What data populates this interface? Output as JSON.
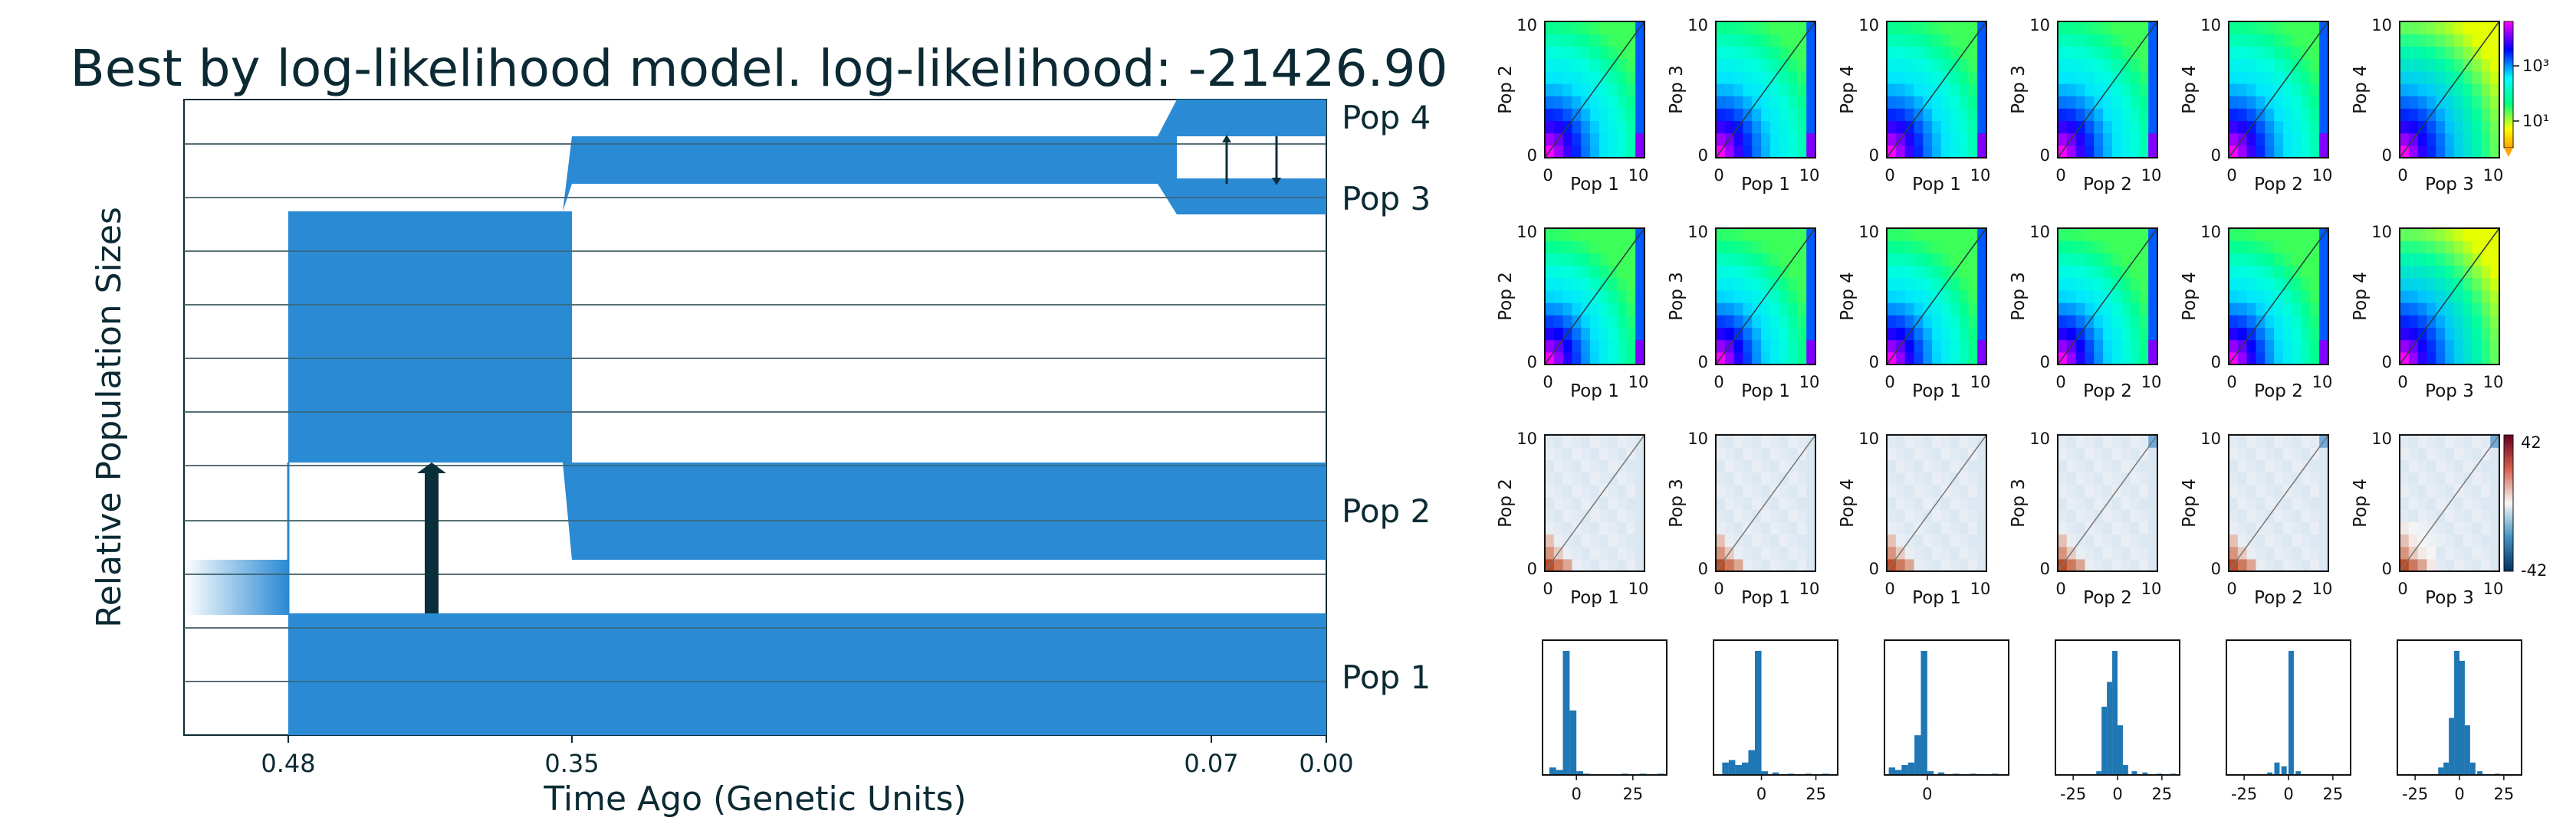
{
  "chart_data": {
    "type": "demographic-model-figure",
    "title": "Best by log-likelihood model. log-likelihood: -21426.90",
    "xlabel": "Time Ago (Genetic Units)",
    "ylabel": "Relative Population Sizes",
    "time_ticks": [
      {
        "value": 0.48,
        "label": "0.48"
      },
      {
        "value": 0.35,
        "label": "0.35"
      },
      {
        "value": 0.07,
        "label": "0.07"
      },
      {
        "value": 0.0,
        "label": "0.00"
      }
    ],
    "populations": [
      "Pop 1",
      "Pop 2",
      "Pop 3",
      "Pop 4"
    ],
    "model_color": "#2a8ad4",
    "arrow_color": "#0b2f3a",
    "sfs_tick_labels": {
      "zero": "0",
      "max": "10"
    },
    "sfs_pairs": [
      {
        "x": "Pop 1",
        "y": "Pop 2"
      },
      {
        "x": "Pop 1",
        "y": "Pop 3"
      },
      {
        "x": "Pop 1",
        "y": "Pop 4"
      },
      {
        "x": "Pop 2",
        "y": "Pop 3"
      },
      {
        "x": "Pop 2",
        "y": "Pop 4"
      },
      {
        "x": "Pop 3",
        "y": "Pop 4"
      }
    ],
    "rows": [
      {
        "kind": "data-sfs"
      },
      {
        "kind": "model-sfs"
      },
      {
        "kind": "residuals"
      },
      {
        "kind": "residual-histogram"
      }
    ],
    "sfs_colorbar": {
      "labels": [
        "10³",
        "10¹"
      ],
      "colors": [
        "#ff00ff",
        "#0000ff",
        "#00ffff",
        "#00ff80",
        "#ffff00",
        "#ffa500"
      ]
    },
    "residual_colorbar": {
      "labels": [
        "42",
        "-42"
      ],
      "colors": [
        "#67001f",
        "#d6604d",
        "#f7f7f7",
        "#4393c3",
        "#053061"
      ]
    },
    "histograms": [
      {
        "ticks": [
          "0",
          "25"
        ],
        "xrange": [
          -15,
          40
        ],
        "bins": [
          [
            -12,
            6
          ],
          [
            -9,
            4
          ],
          [
            -6,
            100
          ],
          [
            -3,
            52
          ],
          [
            0,
            3
          ],
          [
            3,
            1
          ],
          [
            20,
            1
          ],
          [
            28,
            1
          ],
          [
            36,
            1
          ]
        ]
      },
      {
        "ticks": [
          "0",
          "25"
        ],
        "xrange": [
          -22,
          35
        ],
        "bins": [
          [
            -18,
            10
          ],
          [
            -15,
            12
          ],
          [
            -12,
            8
          ],
          [
            -9,
            10
          ],
          [
            -6,
            20
          ],
          [
            -3,
            100
          ],
          [
            0,
            3
          ],
          [
            5,
            2
          ],
          [
            12,
            1
          ],
          [
            20,
            1
          ],
          [
            28,
            1
          ]
        ]
      },
      {
        "ticks": [
          "0"
        ],
        "xrange": [
          -20,
          38
        ],
        "bins": [
          [
            -18,
            6
          ],
          [
            -15,
            4
          ],
          [
            -12,
            8
          ],
          [
            -9,
            10
          ],
          [
            -6,
            32
          ],
          [
            -3,
            100
          ],
          [
            0,
            3
          ],
          [
            5,
            2
          ],
          [
            12,
            1
          ],
          [
            20,
            1
          ],
          [
            30,
            1
          ]
        ]
      },
      {
        "ticks": [
          "-25",
          "0",
          "25"
        ],
        "xrange": [
          -35,
          35
        ],
        "bins": [
          [
            -12,
            3
          ],
          [
            -9,
            55
          ],
          [
            -6,
            75
          ],
          [
            -3,
            100
          ],
          [
            0,
            40
          ],
          [
            3,
            8
          ],
          [
            8,
            3
          ],
          [
            14,
            2
          ],
          [
            22,
            1
          ],
          [
            30,
            1
          ]
        ]
      },
      {
        "ticks": [
          "-25",
          "0",
          "25"
        ],
        "xrange": [
          -35,
          35
        ],
        "bins": [
          [
            -12,
            2
          ],
          [
            -8,
            10
          ],
          [
            -4,
            7
          ],
          [
            0,
            100
          ],
          [
            4,
            3
          ]
        ]
      },
      {
        "ticks": [
          "-25",
          "0",
          "25"
        ],
        "xrange": [
          -35,
          35
        ],
        "bins": [
          [
            -12,
            6
          ],
          [
            -9,
            10
          ],
          [
            -6,
            46
          ],
          [
            -3,
            100
          ],
          [
            0,
            92
          ],
          [
            3,
            40
          ],
          [
            6,
            10
          ],
          [
            10,
            3
          ],
          [
            20,
            1
          ]
        ]
      }
    ]
  }
}
